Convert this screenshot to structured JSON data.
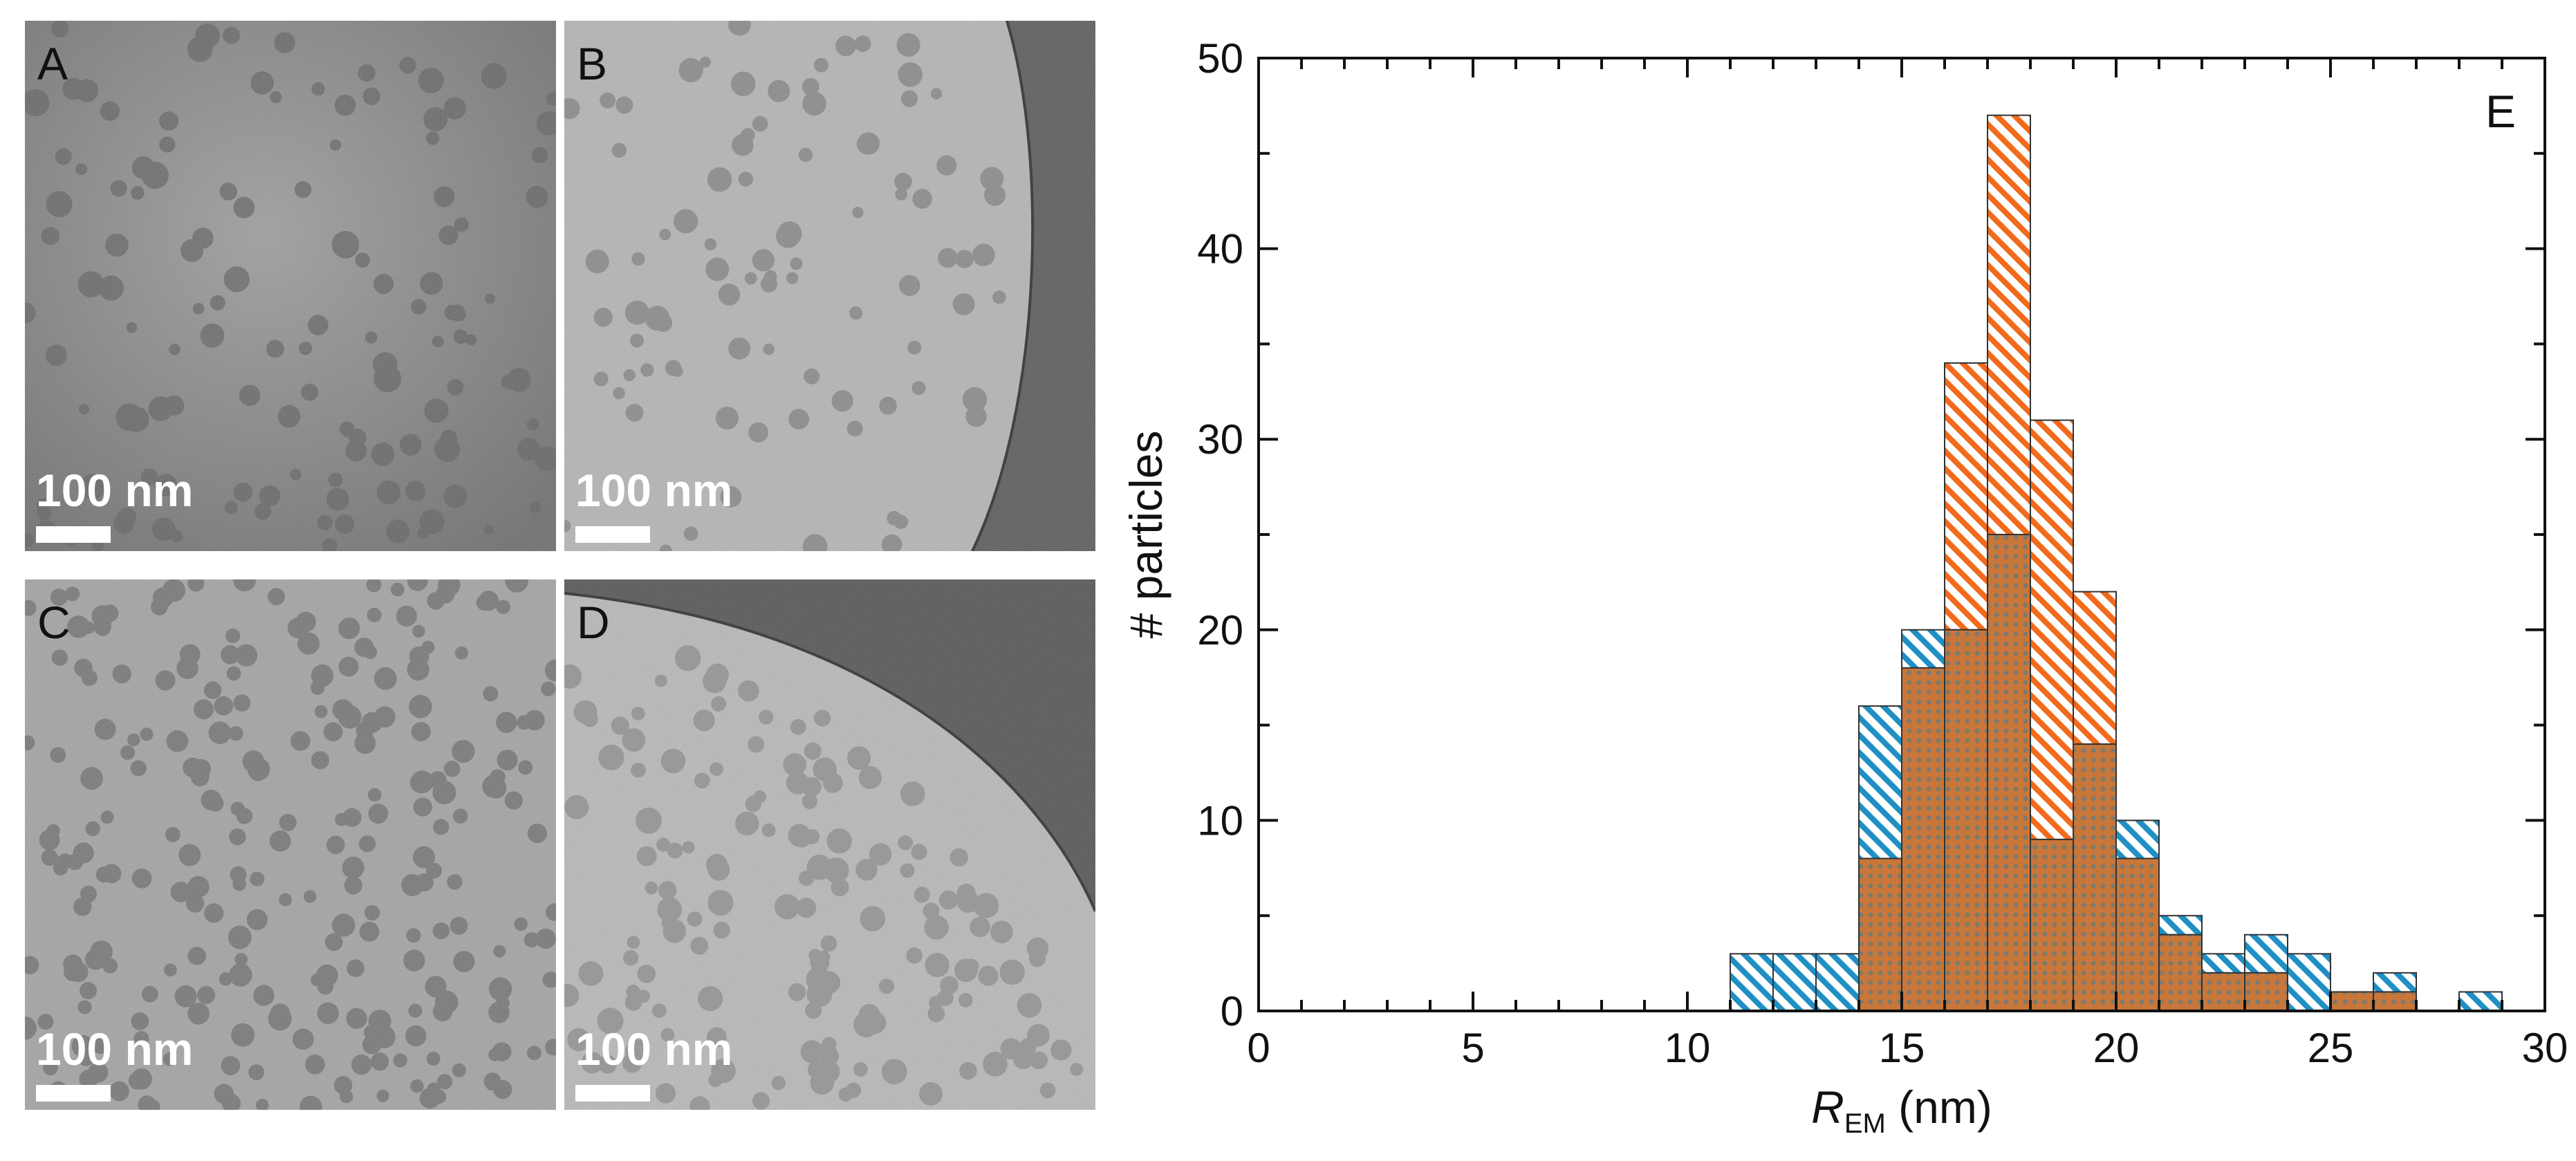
{
  "panels": [
    {
      "label": "A",
      "scalebar": "100 nm"
    },
    {
      "label": "B",
      "scalebar": "100 nm"
    },
    {
      "label": "C",
      "scalebar": "100 nm"
    },
    {
      "label": "D",
      "scalebar": "100 nm"
    }
  ],
  "colors": {
    "blue_series": "#1f8fc4",
    "orange_series": "#f26a1b"
  },
  "chart_data": {
    "type": "bar",
    "panel_label": "E",
    "xlabel": "R",
    "xlabel_subscript": "EM",
    "xlabel_unit": "(nm)",
    "ylabel": "# particles",
    "xlim": [
      0,
      30
    ],
    "ylim": [
      0,
      50
    ],
    "xticks": [
      0,
      5,
      10,
      15,
      20,
      25,
      30
    ],
    "yticks": [
      0,
      10,
      20,
      30,
      40,
      50
    ],
    "bin_width": 1,
    "series": [
      {
        "color": "#1f8fc4",
        "bin_starts": [
          11,
          12,
          13,
          14,
          15,
          16,
          17,
          18,
          19,
          20,
          21,
          22,
          23,
          24,
          25,
          26,
          28
        ],
        "counts": [
          3,
          3,
          3,
          16,
          20,
          20,
          25,
          9,
          14,
          10,
          5,
          3,
          4,
          3,
          1,
          2,
          1
        ]
      },
      {
        "color": "#f26a1b",
        "bin_starts": [
          14,
          15,
          16,
          17,
          18,
          19,
          20,
          21,
          22,
          23,
          24,
          25,
          26
        ],
        "counts": [
          8,
          18,
          34,
          47,
          31,
          22,
          8,
          4,
          2,
          2,
          0,
          1,
          1
        ]
      }
    ]
  }
}
